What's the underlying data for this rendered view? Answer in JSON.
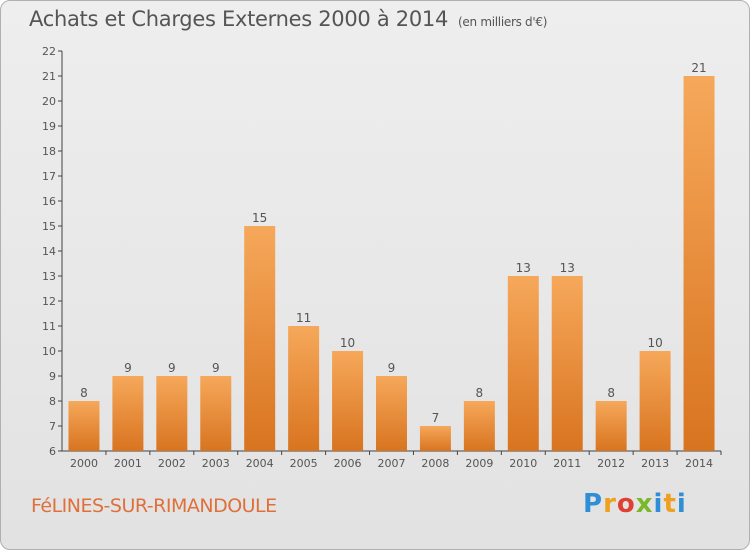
{
  "header": {
    "title": "Achats et Charges Externes 2000 à 2014",
    "unit": "(en milliers d'€)"
  },
  "footer": {
    "town": "FéLINES-SUR-RIMANDOULE",
    "logo_letters": [
      "P",
      "r",
      "o",
      "x",
      "i",
      "t",
      "i"
    ]
  },
  "colors": {
    "bar_light": "#f6a85a",
    "bar_dark": "#d87420",
    "axis": "#444444",
    "text": "#555555"
  },
  "chart_data": {
    "type": "bar",
    "title": "Achats et Charges Externes 2000 à 2014",
    "categories": [
      "2000",
      "2001",
      "2002",
      "2003",
      "2004",
      "2005",
      "2006",
      "2007",
      "2008",
      "2009",
      "2010",
      "2011",
      "2012",
      "2013",
      "2014"
    ],
    "values": [
      8,
      9,
      9,
      9,
      15,
      11,
      10,
      9,
      7,
      8,
      13,
      13,
      8,
      10,
      21
    ],
    "ylim": [
      6,
      22
    ],
    "yticks": [
      6,
      7,
      8,
      9,
      10,
      11,
      12,
      13,
      14,
      15,
      16,
      17,
      18,
      19,
      20,
      21,
      22
    ],
    "xlabel": "",
    "ylabel": "",
    "grid": false,
    "data_labels": true
  }
}
